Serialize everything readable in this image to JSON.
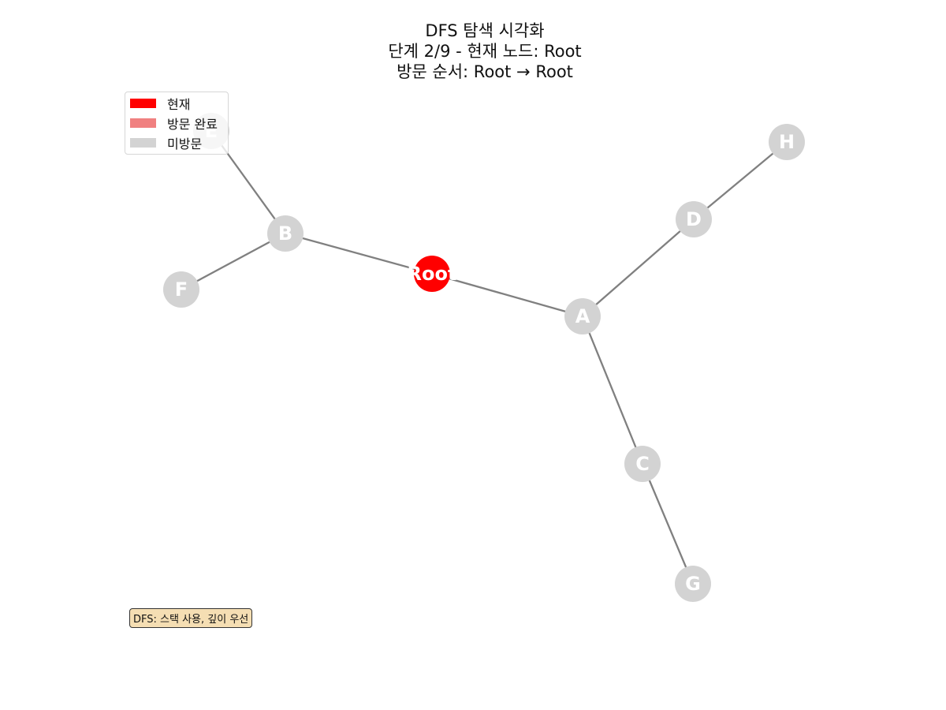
{
  "title": {
    "line1": "DFS 탐색 시각화",
    "line2": "단계 2/9 - 현재 노드: Root",
    "line3": "방문 순서: Root → Root"
  },
  "legend": [
    {
      "label": "현재",
      "color": "#ff0000"
    },
    {
      "label": "방문 완료",
      "color": "#f08080"
    },
    {
      "label": "미방문",
      "color": "#d3d3d3"
    }
  ],
  "note": "DFS: 스택 사용, 깊이 우선",
  "graph": {
    "nodes": [
      {
        "id": "Root",
        "label": "Root",
        "state": "current"
      },
      {
        "id": "A",
        "label": "A",
        "state": "unvisited"
      },
      {
        "id": "B",
        "label": "B",
        "state": "unvisited"
      },
      {
        "id": "C",
        "label": "C",
        "state": "unvisited"
      },
      {
        "id": "D",
        "label": "D",
        "state": "unvisited"
      },
      {
        "id": "E",
        "label": "E",
        "state": "unvisited"
      },
      {
        "id": "F",
        "label": "F",
        "state": "unvisited"
      },
      {
        "id": "G",
        "label": "G",
        "state": "unvisited"
      },
      {
        "id": "H",
        "label": "H",
        "state": "unvisited"
      }
    ],
    "edges": [
      [
        "Root",
        "A"
      ],
      [
        "Root",
        "B"
      ],
      [
        "A",
        "C"
      ],
      [
        "A",
        "D"
      ],
      [
        "B",
        "E"
      ],
      [
        "B",
        "F"
      ],
      [
        "C",
        "G"
      ],
      [
        "D",
        "H"
      ]
    ],
    "colors": {
      "current": "#ff0000",
      "visited": "#f08080",
      "unvisited": "#d3d3d3",
      "edge": "#808080"
    }
  }
}
